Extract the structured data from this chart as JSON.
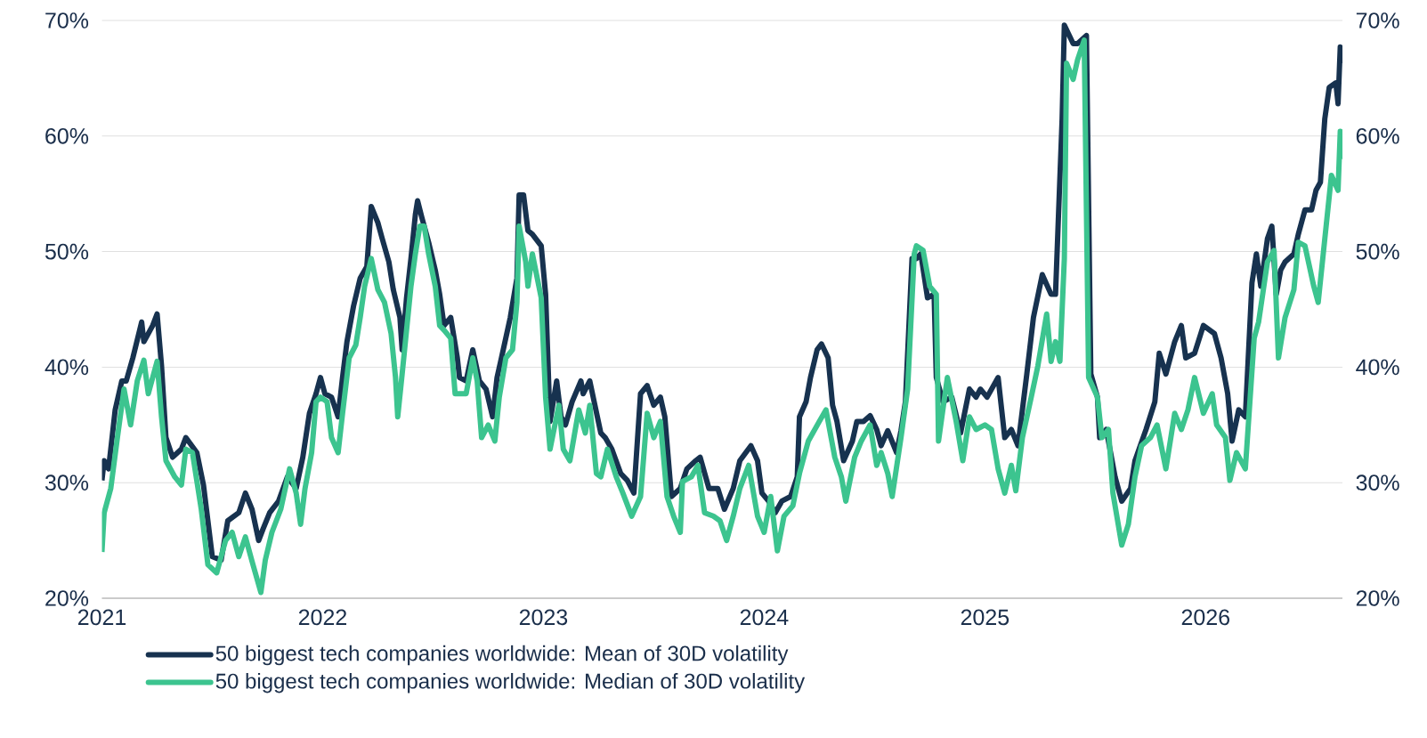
{
  "chart_data": {
    "type": "line",
    "xlim": [
      2021,
      2026.62
    ],
    "xticks": [
      2021,
      2022,
      2023,
      2024,
      2025,
      2026
    ],
    "ylim": [
      20,
      70
    ],
    "yticks": [
      {
        "value": 20,
        "label": "20%"
      },
      {
        "value": 30,
        "label": "30%"
      },
      {
        "value": 40,
        "label": "40%"
      },
      {
        "value": 50,
        "label": "50%"
      },
      {
        "value": 60,
        "label": "60%"
      },
      {
        "value": 70,
        "label": "70%"
      }
    ],
    "y2lim": [
      20,
      70
    ],
    "y2ticks": [
      {
        "value": 20,
        "label": "20%"
      },
      {
        "value": 30,
        "label": "30%"
      },
      {
        "value": 40,
        "label": "40%"
      },
      {
        "value": 50,
        "label": "50%"
      },
      {
        "value": 60,
        "label": "60%"
      },
      {
        "value": 70,
        "label": "70%"
      }
    ],
    "grid": "y",
    "legend": "bottom",
    "series": [
      {
        "name": "50 biggest tech companies worldwide: Mean of 30D volatility",
        "color": "#17324f",
        "x": [
          2021.0,
          2021.01,
          2021.03,
          2021.06,
          2021.09,
          2021.11,
          2021.14,
          2021.18,
          2021.19,
          2021.23,
          2021.25,
          2021.27,
          2021.29,
          2021.32,
          2021.36,
          2021.38,
          2021.43,
          2021.46,
          2021.5,
          2021.54,
          2021.57,
          2021.62,
          2021.65,
          2021.68,
          2021.71,
          2021.73,
          2021.76,
          2021.8,
          2021.84,
          2021.88,
          2021.91,
          2021.94,
          2021.97,
          2021.99,
          2022.01,
          2022.04,
          2022.07,
          2022.09,
          2022.11,
          2022.14,
          2022.17,
          2022.2,
          2022.22,
          2022.25,
          2022.27,
          2022.3,
          2022.32,
          2022.35,
          2022.36,
          2022.38,
          2022.4,
          2022.42,
          2022.43,
          2022.45,
          2022.48,
          2022.51,
          2022.53,
          2022.55,
          2022.58,
          2022.61,
          2022.62,
          2022.65,
          2022.68,
          2022.71,
          2022.74,
          2022.77,
          2022.79,
          2022.81,
          2022.85,
          2022.88,
          2022.89,
          2022.91,
          2022.93,
          2022.95,
          2022.99,
          2023.01,
          2023.03,
          2023.06,
          2023.08,
          2023.1,
          2023.13,
          2023.17,
          2023.18,
          2023.21,
          2023.23,
          2023.26,
          2023.28,
          2023.31,
          2023.35,
          2023.38,
          2023.41,
          2023.44,
          2023.47,
          2023.5,
          2023.53,
          2023.55,
          2023.58,
          2023.62,
          2023.65,
          2023.69,
          2023.71,
          2023.75,
          2023.79,
          2023.82,
          2023.86,
          2023.89,
          2023.94,
          2023.97,
          2023.99,
          2024.02,
          2024.05,
          2024.08,
          2024.12,
          2024.15,
          2024.16,
          2024.19,
          2024.21,
          2024.24,
          2024.26,
          2024.29,
          2024.31,
          2024.33,
          2024.36,
          2024.4,
          2024.42,
          2024.45,
          2024.48,
          2024.51,
          2024.53,
          2024.56,
          2024.6,
          2024.62,
          2024.64,
          2024.67,
          2024.69,
          2024.71,
          2024.74,
          2024.77,
          2024.78,
          2024.81,
          2024.85,
          2024.89,
          2024.93,
          2024.96,
          2024.98,
          2025.01,
          2025.06,
          2025.09,
          2025.12,
          2025.15,
          2025.19,
          2025.22,
          2025.26,
          2025.3,
          2025.32,
          2025.35,
          2025.36,
          2025.4,
          2025.42,
          2025.46,
          2025.48,
          2025.51,
          2025.52,
          2025.55,
          2025.59,
          2025.62,
          2025.66,
          2025.68,
          2025.73,
          2025.77,
          2025.79,
          2025.82,
          2025.86,
          2025.89,
          2025.91,
          2025.95,
          2025.99,
          2026.04,
          2026.07,
          2026.1,
          2026.12,
          2026.15,
          2026.18,
          2026.21,
          2026.23,
          2026.25,
          2026.28,
          2026.3,
          2026.32,
          2026.34,
          2026.36,
          2026.4,
          2026.42,
          2026.45,
          2026.48,
          2026.5,
          2026.52,
          2026.54,
          2026.56,
          2026.59,
          2026.6,
          2026.61,
          2026.62
        ],
        "values": [
          30.2,
          31.9,
          31.2,
          36.3,
          38.8,
          38.8,
          40.8,
          43.9,
          42.2,
          43.6,
          44.6,
          40.1,
          33.9,
          32.2,
          32.9,
          33.9,
          32.6,
          29.8,
          23.6,
          23.3,
          26.7,
          27.4,
          29.1,
          27.7,
          25.0,
          26.0,
          27.4,
          28.4,
          30.5,
          29.5,
          32.2,
          36.0,
          37.7,
          39.1,
          37.7,
          37.4,
          35.7,
          39.1,
          42.2,
          45.3,
          47.7,
          48.7,
          53.9,
          52.5,
          51.1,
          49.1,
          46.7,
          44.3,
          41.5,
          46.0,
          49.4,
          53.2,
          54.4,
          52.9,
          50.8,
          48.4,
          46.3,
          43.6,
          44.3,
          40.8,
          39.1,
          38.8,
          41.5,
          38.8,
          38.1,
          35.7,
          39.1,
          40.8,
          44.3,
          47.7,
          54.9,
          54.9,
          51.8,
          51.5,
          50.5,
          46.3,
          35.3,
          38.8,
          35.7,
          35.0,
          37.0,
          38.8,
          37.7,
          38.8,
          37.0,
          34.3,
          33.9,
          32.9,
          30.8,
          30.2,
          29.1,
          37.7,
          38.4,
          36.7,
          37.4,
          35.7,
          28.8,
          29.5,
          31.2,
          31.9,
          32.2,
          29.5,
          29.5,
          27.7,
          29.5,
          31.9,
          33.2,
          31.9,
          29.1,
          28.4,
          27.4,
          28.4,
          28.8,
          30.5,
          35.7,
          37.0,
          39.1,
          41.5,
          42.0,
          40.8,
          36.7,
          35.3,
          31.9,
          33.6,
          35.3,
          35.3,
          35.8,
          34.6,
          33.2,
          34.5,
          32.6,
          34.5,
          37.0,
          49.4,
          49.4,
          49.8,
          46.0,
          46.3,
          39.1,
          37.0,
          37.4,
          34.3,
          38.1,
          37.4,
          38.1,
          37.4,
          39.1,
          33.9,
          34.6,
          33.2,
          39.4,
          44.3,
          48.0,
          46.3,
          46.3,
          61.5,
          69.6,
          68.0,
          68.0,
          68.7,
          39.4,
          37.4,
          33.9,
          34.6,
          30.5,
          28.4,
          29.5,
          31.9,
          34.6,
          37.0,
          41.2,
          39.4,
          42.2,
          43.6,
          40.8,
          41.2,
          43.6,
          42.9,
          40.8,
          37.7,
          33.6,
          36.3,
          35.7,
          47.3,
          49.8,
          47.0,
          51.1,
          52.2,
          46.3,
          48.4,
          49.1,
          49.8,
          51.5,
          53.6,
          53.6,
          55.3,
          56.0,
          61.5,
          64.2,
          64.6,
          62.8,
          67.7,
          66.3
        ]
      },
      {
        "name": "50 biggest tech companies worldwide: Median of 30D volatility",
        "color": "#3cc48f",
        "x": [
          2021.0,
          2021.01,
          2021.04,
          2021.07,
          2021.1,
          2021.13,
          2021.16,
          2021.19,
          2021.21,
          2021.25,
          2021.27,
          2021.29,
          2021.33,
          2021.36,
          2021.38,
          2021.41,
          2021.45,
          2021.48,
          2021.52,
          2021.56,
          2021.59,
          2021.62,
          2021.65,
          2021.68,
          2021.72,
          2021.74,
          2021.77,
          2021.81,
          2021.85,
          2021.88,
          2021.9,
          2021.92,
          2021.95,
          2021.97,
          2021.99,
          2022.02,
          2022.04,
          2022.07,
          2022.09,
          2022.12,
          2022.15,
          2022.17,
          2022.19,
          2022.22,
          2022.25,
          2022.28,
          2022.31,
          2022.33,
          2022.34,
          2022.36,
          2022.4,
          2022.42,
          2022.44,
          2022.46,
          2022.48,
          2022.51,
          2022.53,
          2022.55,
          2022.58,
          2022.6,
          2022.62,
          2022.65,
          2022.68,
          2022.7,
          2022.72,
          2022.75,
          2022.78,
          2022.8,
          2022.83,
          2022.86,
          2022.88,
          2022.89,
          2022.92,
          2022.93,
          2022.95,
          2022.99,
          2023.01,
          2023.03,
          2023.07,
          2023.09,
          2023.12,
          2023.16,
          2023.19,
          2023.21,
          2023.24,
          2023.26,
          2023.29,
          2023.33,
          2023.36,
          2023.4,
          2023.44,
          2023.47,
          2023.5,
          2023.53,
          2023.56,
          2023.59,
          2023.62,
          2023.63,
          2023.67,
          2023.7,
          2023.73,
          2023.77,
          2023.8,
          2023.83,
          2023.86,
          2023.89,
          2023.93,
          2023.97,
          2024.0,
          2024.03,
          2024.06,
          2024.09,
          2024.13,
          2024.16,
          2024.2,
          2024.25,
          2024.28,
          2024.32,
          2024.35,
          2024.37,
          2024.41,
          2024.44,
          2024.48,
          2024.51,
          2024.53,
          2024.56,
          2024.58,
          2024.62,
          2024.65,
          2024.68,
          2024.69,
          2024.72,
          2024.75,
          2024.78,
          2024.79,
          2024.83,
          2024.87,
          2024.9,
          2024.93,
          2024.96,
          2025.0,
          2025.03,
          2025.06,
          2025.09,
          2025.12,
          2025.14,
          2025.17,
          2025.21,
          2025.24,
          2025.28,
          2025.3,
          2025.32,
          2025.34,
          2025.36,
          2025.37,
          2025.4,
          2025.42,
          2025.45,
          2025.47,
          2025.51,
          2025.53,
          2025.56,
          2025.58,
          2025.62,
          2025.65,
          2025.68,
          2025.71,
          2025.75,
          2025.78,
          2025.82,
          2025.86,
          2025.89,
          2025.92,
          2025.95,
          2025.99,
          2026.03,
          2026.05,
          2026.09,
          2026.11,
          2026.14,
          2026.18,
          2026.22,
          2026.24,
          2026.28,
          2026.31,
          2026.33,
          2026.36,
          2026.4,
          2026.42,
          2026.45,
          2026.49,
          2026.51,
          2026.54,
          2026.57,
          2026.6,
          2026.61,
          2026.62
        ],
        "values": [
          24.0,
          27.4,
          29.5,
          33.9,
          38.1,
          35.0,
          38.8,
          40.6,
          37.7,
          40.5,
          35.7,
          31.9,
          30.5,
          29.8,
          32.9,
          32.6,
          27.7,
          22.9,
          22.2,
          25.0,
          25.7,
          23.6,
          25.3,
          23.2,
          20.5,
          23.3,
          25.7,
          27.7,
          31.2,
          29.1,
          26.4,
          29.5,
          32.6,
          37.0,
          37.4,
          37.0,
          33.9,
          32.6,
          36.0,
          40.8,
          41.9,
          44.3,
          47.0,
          49.4,
          46.7,
          45.6,
          42.9,
          39.1,
          35.7,
          39.4,
          47.0,
          49.8,
          52.2,
          52.2,
          49.8,
          47.0,
          43.6,
          43.2,
          42.5,
          37.7,
          37.7,
          37.7,
          40.8,
          38.8,
          33.9,
          35.0,
          33.6,
          37.4,
          40.8,
          41.5,
          45.6,
          52.2,
          49.1,
          47.0,
          49.8,
          46.0,
          37.4,
          32.9,
          36.7,
          32.9,
          31.9,
          36.3,
          34.3,
          36.7,
          30.8,
          30.5,
          32.9,
          30.5,
          29.1,
          27.1,
          28.8,
          36.0,
          33.9,
          35.3,
          28.8,
          27.1,
          25.7,
          30.1,
          30.5,
          31.5,
          27.4,
          27.1,
          26.7,
          25.0,
          27.1,
          29.5,
          31.5,
          27.1,
          25.7,
          28.8,
          24.1,
          27.1,
          28.0,
          30.8,
          33.6,
          35.3,
          36.3,
          32.2,
          30.5,
          28.4,
          32.2,
          33.6,
          35.0,
          31.5,
          32.6,
          30.8,
          28.8,
          33.9,
          38.1,
          49.8,
          50.5,
          50.1,
          47.0,
          46.3,
          33.6,
          39.1,
          35.3,
          31.9,
          35.7,
          34.6,
          35.0,
          34.6,
          31.2,
          29.1,
          31.5,
          29.3,
          33.9,
          37.4,
          40.1,
          44.6,
          40.5,
          42.2,
          40.5,
          49.4,
          66.3,
          64.9,
          66.6,
          68.3,
          39.1,
          37.4,
          33.9,
          34.6,
          29.1,
          24.6,
          26.4,
          30.5,
          33.2,
          33.9,
          35.0,
          31.2,
          36.0,
          34.6,
          36.3,
          39.1,
          36.0,
          37.7,
          35.0,
          33.9,
          30.2,
          32.6,
          31.2,
          42.5,
          43.9,
          49.1,
          50.1,
          40.8,
          44.3,
          46.7,
          50.8,
          50.5,
          47.0,
          45.6,
          51.1,
          56.6,
          55.3,
          60.4,
          58.0
        ]
      }
    ]
  }
}
